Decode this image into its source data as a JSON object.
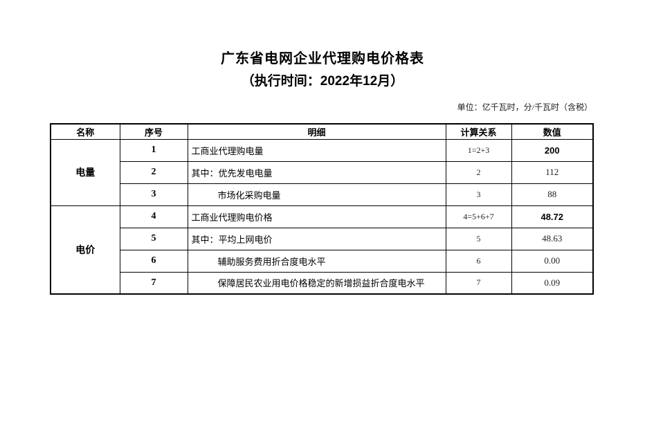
{
  "page": {
    "title": "广东省电网企业代理购电价格表",
    "subtitle": "（执行时间：2022年12月）",
    "unit_note": "单位：亿千瓦时，分/千瓦时（含税）"
  },
  "table": {
    "headers": [
      "名称",
      "序号",
      "明细",
      "计算关系",
      "数值"
    ],
    "groups": [
      {
        "name": "电量"
      },
      {
        "name": "电价"
      }
    ],
    "rows": [
      {
        "seq": "1",
        "detail": "工商业代理购电量",
        "calc": "1=2+3",
        "value": "200"
      },
      {
        "seq": "2",
        "detail": "其中：优先发电电量",
        "calc": "2",
        "value": "112"
      },
      {
        "seq": "3",
        "detail": "市场化采购电量",
        "calc": "3",
        "value": "88"
      },
      {
        "seq": "4",
        "detail": "工商业代理购电价格",
        "calc": "4=5+6+7",
        "value": "48.72"
      },
      {
        "seq": "5",
        "detail": "其中：平均上网电价",
        "calc": "5",
        "value": "48.63"
      },
      {
        "seq": "6",
        "detail": "辅助服务费用折合度电水平",
        "calc": "6",
        "value": "0.00"
      },
      {
        "seq": "7",
        "detail": "保障居民农业用电价格稳定的新增损益折合度电水平",
        "calc": "7",
        "value": "0.09"
      }
    ]
  }
}
